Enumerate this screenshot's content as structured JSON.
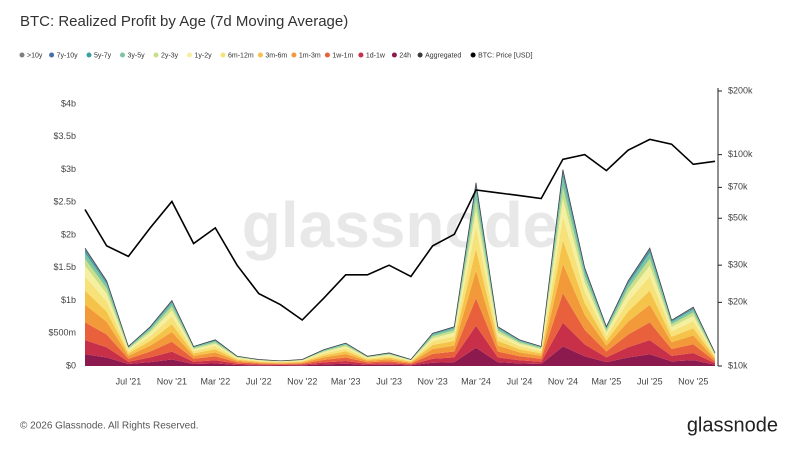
{
  "chart_data": {
    "type": "stacked-area",
    "title": "BTC: Realized Profit by Age (7d Moving Average)",
    "watermark": "glassnode",
    "x": [
      "2021-03",
      "2021-05",
      "2021-07",
      "2021-09",
      "2021-11",
      "2022-01",
      "2022-03",
      "2022-05",
      "2022-07",
      "2022-09",
      "2022-11",
      "2023-01",
      "2023-03",
      "2023-05",
      "2023-07",
      "2023-09",
      "2023-11",
      "2024-01",
      "2024-03",
      "2024-05",
      "2024-07",
      "2024-09",
      "2024-11",
      "2025-01",
      "2025-03",
      "2025-05",
      "2025-07",
      "2025-09",
      "2025-11",
      "2026-01"
    ],
    "xlim": [
      "2021-03",
      "2026-01"
    ],
    "xticks": [
      {
        "value": "2021-07",
        "label": "Jul '21"
      },
      {
        "value": "2021-11",
        "label": "Nov '21"
      },
      {
        "value": "2022-03",
        "label": "Mar '22"
      },
      {
        "value": "2022-07",
        "label": "Jul '22"
      },
      {
        "value": "2022-11",
        "label": "Nov '22"
      },
      {
        "value": "2023-03",
        "label": "Mar '23"
      },
      {
        "value": "2023-07",
        "label": "Jul '23"
      },
      {
        "value": "2023-11",
        "label": "Nov '23"
      },
      {
        "value": "2024-03",
        "label": "Mar '24"
      },
      {
        "value": "2024-07",
        "label": "Jul '24"
      },
      {
        "value": "2024-11",
        "label": "Nov '24"
      },
      {
        "value": "2025-03",
        "label": "Mar '25"
      },
      {
        "value": "2025-07",
        "label": "Jul '25"
      },
      {
        "value": "2025-11",
        "label": "Nov '25"
      }
    ],
    "ylim": [
      0,
      4.2
    ],
    "yticks": [
      {
        "value": 0,
        "label": "$0"
      },
      {
        "value": 0.5,
        "label": "$500m"
      },
      {
        "value": 1,
        "label": "$1b"
      },
      {
        "value": 1.5,
        "label": "$1.5b"
      },
      {
        "value": 2,
        "label": "$2b"
      },
      {
        "value": 2.5,
        "label": "$2.5b"
      },
      {
        "value": 3,
        "label": "$3b"
      },
      {
        "value": 3.5,
        "label": "$3.5b"
      },
      {
        "value": 4,
        "label": "$4b"
      }
    ],
    "y2lim": [
      10000,
      200000
    ],
    "y2log": true,
    "y2ticks": [
      {
        "value": 10000,
        "label": "$10k"
      },
      {
        "value": 20000,
        "label": "$20k"
      },
      {
        "value": 30000,
        "label": "$30k"
      },
      {
        "value": 50000,
        "label": "$50k"
      },
      {
        "value": 70000,
        "label": "$70k"
      },
      {
        "value": 100000,
        "label": "$100k"
      },
      {
        "value": 200000,
        "label": "$200k"
      }
    ],
    "grid": false,
    "legend": "top-left",
    "series": [
      {
        "name": ">10y",
        "type": "area",
        "color": "#7f7f7f",
        "values": [
          0.018,
          0.013,
          0.003,
          0.006,
          0.01,
          0.003,
          0.004,
          0.002,
          0.001,
          0.001,
          0.001,
          0.003,
          0.004,
          0.002,
          0.002,
          0.001,
          0.005,
          0.006,
          0.028,
          0.006,
          0.004,
          0.003,
          0.03,
          0.015,
          0.006,
          0.013,
          0.018,
          0.007,
          0.009,
          0.002
        ]
      },
      {
        "name": "7y-10y",
        "type": "area",
        "color": "#4472a8",
        "values": [
          0.018,
          0.013,
          0.003,
          0.006,
          0.01,
          0.003,
          0.004,
          0.002,
          0.001,
          0.001,
          0.001,
          0.003,
          0.004,
          0.002,
          0.002,
          0.001,
          0.005,
          0.006,
          0.028,
          0.006,
          0.004,
          0.003,
          0.03,
          0.015,
          0.006,
          0.013,
          0.018,
          0.007,
          0.009,
          0.002
        ]
      },
      {
        "name": "5y-7y",
        "type": "area",
        "color": "#3aa0a0",
        "values": [
          0.036,
          0.026,
          0.006,
          0.012,
          0.02,
          0.006,
          0.008,
          0.003,
          0.002,
          0.002,
          0.002,
          0.005,
          0.007,
          0.003,
          0.004,
          0.002,
          0.01,
          0.012,
          0.056,
          0.012,
          0.008,
          0.006,
          0.06,
          0.03,
          0.012,
          0.026,
          0.036,
          0.014,
          0.018,
          0.004
        ]
      },
      {
        "name": "3y-5y",
        "type": "area",
        "color": "#7fc4a0",
        "values": [
          0.09,
          0.065,
          0.015,
          0.03,
          0.05,
          0.015,
          0.02,
          0.008,
          0.005,
          0.004,
          0.005,
          0.013,
          0.018,
          0.008,
          0.01,
          0.005,
          0.025,
          0.03,
          0.14,
          0.03,
          0.02,
          0.015,
          0.15,
          0.075,
          0.03,
          0.065,
          0.09,
          0.035,
          0.045,
          0.01
        ]
      },
      {
        "name": "2y-3y",
        "type": "area",
        "color": "#c8e08a",
        "values": [
          0.108,
          0.078,
          0.018,
          0.036,
          0.06,
          0.018,
          0.024,
          0.009,
          0.006,
          0.005,
          0.006,
          0.015,
          0.021,
          0.009,
          0.012,
          0.006,
          0.03,
          0.036,
          0.168,
          0.036,
          0.024,
          0.018,
          0.18,
          0.09,
          0.036,
          0.078,
          0.108,
          0.042,
          0.054,
          0.012
        ]
      },
      {
        "name": "1y-2y",
        "type": "area",
        "color": "#f4f0a0",
        "values": [
          0.162,
          0.117,
          0.027,
          0.054,
          0.09,
          0.027,
          0.036,
          0.014,
          0.009,
          0.007,
          0.009,
          0.023,
          0.032,
          0.014,
          0.018,
          0.009,
          0.045,
          0.054,
          0.252,
          0.054,
          0.036,
          0.027,
          0.27,
          0.135,
          0.054,
          0.117,
          0.162,
          0.063,
          0.081,
          0.018
        ]
      },
      {
        "name": "6m-12m",
        "type": "area",
        "color": "#f7e27a",
        "values": [
          0.216,
          0.156,
          0.036,
          0.072,
          0.12,
          0.036,
          0.048,
          0.018,
          0.012,
          0.01,
          0.012,
          0.03,
          0.042,
          0.018,
          0.024,
          0.012,
          0.06,
          0.072,
          0.336,
          0.072,
          0.048,
          0.036,
          0.36,
          0.18,
          0.072,
          0.156,
          0.216,
          0.084,
          0.108,
          0.024
        ]
      },
      {
        "name": "3m-6m",
        "type": "area",
        "color": "#f5c24a",
        "values": [
          0.216,
          0.156,
          0.036,
          0.072,
          0.12,
          0.036,
          0.048,
          0.018,
          0.012,
          0.01,
          0.012,
          0.03,
          0.042,
          0.018,
          0.024,
          0.012,
          0.06,
          0.072,
          0.336,
          0.072,
          0.048,
          0.036,
          0.36,
          0.18,
          0.072,
          0.156,
          0.216,
          0.084,
          0.108,
          0.024
        ]
      },
      {
        "name": "1m-3m",
        "type": "area",
        "color": "#f29a3a",
        "values": [
          0.27,
          0.195,
          0.045,
          0.09,
          0.15,
          0.045,
          0.06,
          0.023,
          0.015,
          0.012,
          0.015,
          0.038,
          0.053,
          0.023,
          0.03,
          0.015,
          0.075,
          0.09,
          0.42,
          0.09,
          0.06,
          0.045,
          0.45,
          0.225,
          0.09,
          0.195,
          0.27,
          0.105,
          0.135,
          0.03
        ]
      },
      {
        "name": "1w-1m",
        "type": "area",
        "color": "#e8603c",
        "values": [
          0.27,
          0.195,
          0.045,
          0.09,
          0.15,
          0.045,
          0.06,
          0.023,
          0.015,
          0.012,
          0.015,
          0.038,
          0.053,
          0.023,
          0.03,
          0.015,
          0.075,
          0.09,
          0.42,
          0.09,
          0.06,
          0.045,
          0.45,
          0.225,
          0.09,
          0.195,
          0.27,
          0.105,
          0.135,
          0.03
        ]
      },
      {
        "name": "1d-1w",
        "type": "area",
        "color": "#c8304a",
        "values": [
          0.216,
          0.156,
          0.036,
          0.072,
          0.12,
          0.036,
          0.048,
          0.018,
          0.012,
          0.01,
          0.012,
          0.03,
          0.042,
          0.018,
          0.024,
          0.012,
          0.06,
          0.072,
          0.336,
          0.072,
          0.048,
          0.036,
          0.36,
          0.18,
          0.072,
          0.156,
          0.216,
          0.084,
          0.108,
          0.024
        ]
      },
      {
        "name": "24h",
        "type": "area",
        "color": "#8c1a4e",
        "values": [
          0.18,
          0.13,
          0.03,
          0.06,
          0.1,
          0.03,
          0.04,
          0.015,
          0.01,
          0.008,
          0.01,
          0.025,
          0.035,
          0.015,
          0.02,
          0.01,
          0.05,
          0.06,
          0.28,
          0.06,
          0.04,
          0.03,
          0.3,
          0.15,
          0.06,
          0.13,
          0.18,
          0.07,
          0.09,
          0.02
        ]
      },
      {
        "name": "Aggregated",
        "type": "line",
        "color": "#3a3a3a",
        "values": [
          1.8,
          1.3,
          0.3,
          0.6,
          1.0,
          0.3,
          0.4,
          0.15,
          0.1,
          0.08,
          0.1,
          0.25,
          0.35,
          0.15,
          0.2,
          0.1,
          0.5,
          0.6,
          2.8,
          0.6,
          0.4,
          0.3,
          3.0,
          1.5,
          0.6,
          1.3,
          1.8,
          0.7,
          0.9,
          0.2
        ]
      },
      {
        "name": "BTC: Price [USD]",
        "type": "line",
        "axis": "y2",
        "color": "#000000",
        "values": [
          55000,
          37000,
          33000,
          45000,
          60000,
          38000,
          45000,
          30000,
          22000,
          19500,
          16500,
          21000,
          27000,
          27000,
          30000,
          26500,
          37000,
          42000,
          68000,
          66000,
          64000,
          62000,
          95000,
          100000,
          84000,
          105000,
          118000,
          112000,
          90000,
          93000
        ]
      }
    ]
  },
  "footer": {
    "copyright": "© 2026 Glassnode. All Rights Reserved.",
    "brand": "glassnode"
  }
}
